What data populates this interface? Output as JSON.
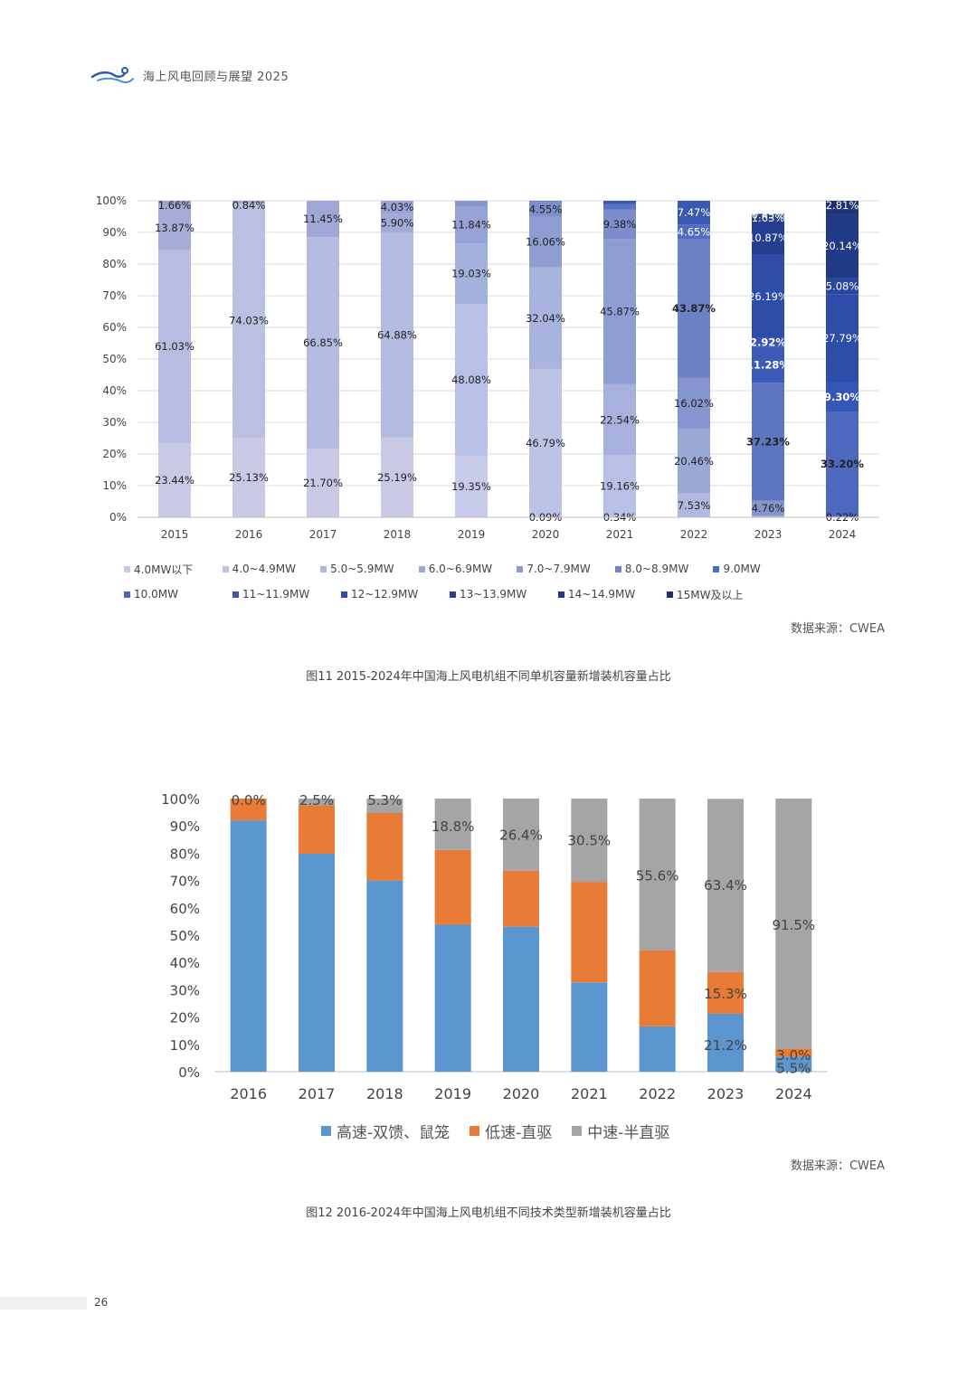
{
  "header": {
    "title": "海上风电回顾与展望 2025"
  },
  "figure11": {
    "caption": "图11  2015-2024年中国海上风电机组不同单机容量新增装机容量占比",
    "source": "数据来源：CWEA",
    "legend_rows": [
      [
        {
          "label": "4.0MW以下",
          "color": "#c9c9e6"
        },
        {
          "label": "4.0~4.9MW",
          "color": "#bec3e3"
        },
        {
          "label": "5.0~5.9MW",
          "color": "#aeb8e1"
        },
        {
          "label": "6.0~6.9MW",
          "color": "#9ea8d7"
        },
        {
          "label": "7.0~7.9MW",
          "color": "#8d9acf"
        },
        {
          "label": "8.0~8.9MW",
          "color": "#6f82c6"
        },
        {
          "label": "9.0MW",
          "color": "#4f6cc0"
        }
      ],
      [
        {
          "label": "10.0MW",
          "color": "#4a66bb"
        },
        {
          "label": "11~11.9MW",
          "color": "#3a58b2"
        },
        {
          "label": "12~12.9MW",
          "color": "#2f4ea8"
        },
        {
          "label": "13~13.9MW",
          "color": "#263f92"
        },
        {
          "label": "14~14.9MW",
          "color": "#223a85"
        },
        {
          "label": "15MW及以上",
          "color": "#1c2f6e"
        }
      ]
    ]
  },
  "figure12": {
    "caption": "图12  2016-2024年中国海上风电机组不同技术类型新增装机容量占比",
    "source": "数据来源：CWEA",
    "legend": [
      {
        "label": "高速-双馈、鼠笼",
        "color": "#5b96cf"
      },
      {
        "label": "低速-直驱",
        "color": "#e87b35"
      },
      {
        "label": "中速-半直驱",
        "color": "#a5a5a5"
      }
    ]
  },
  "page": {
    "number": "26"
  },
  "chart_data": [
    {
      "type": "bar",
      "stacked": true,
      "ylim": [
        0,
        100
      ],
      "yticks": [
        "0%",
        "10%",
        "20%",
        "30%",
        "40%",
        "50%",
        "60%",
        "70%",
        "80%",
        "90%",
        "100%"
      ],
      "grid": true,
      "legend_position": "bottom",
      "categories": [
        "2015",
        "2016",
        "2017",
        "2018",
        "2019",
        "2020",
        "2021",
        "2022",
        "2023",
        "2024"
      ],
      "series": [
        {
          "name": "4.0MW以下",
          "color": "#c9c9e6",
          "values": [
            1.66,
            0.84,
            0,
            0,
            0,
            0,
            0,
            0,
            0,
            0
          ]
        },
        {
          "name": "4.0~4.9MW",
          "color": "#bec3e3",
          "values": [
            13.87,
            0,
            0,
            4.03,
            0,
            0,
            0,
            0,
            0,
            0
          ]
        },
        {
          "name": "5.0~5.9MW",
          "color": "#aeb8e1",
          "values": [
            0,
            0,
            11.45,
            5.9,
            0,
            0,
            0,
            0,
            0,
            0
          ]
        },
        {
          "name": "6.0~6.9MW",
          "color": "#9ea8d7",
          "values": [
            0,
            0,
            0,
            0,
            1.7,
            0,
            0,
            0,
            0,
            0
          ]
        },
        {
          "name": "7.0~7.9MW",
          "color": "#8d9acf",
          "values": [
            61.03,
            74.03,
            66.85,
            64.88,
            11.84,
            4.55,
            1.1,
            0,
            0,
            0
          ]
        },
        {
          "name": "8.0~8.9MW",
          "color": "#6f82c6",
          "values": [
            0,
            0,
            0,
            0,
            19.03,
            16.06,
            9.38,
            7.47,
            0.45,
            2.81
          ]
        },
        {
          "name": "9.0MW",
          "color": "#4f6cc0",
          "values": [
            23.44,
            25.13,
            21.7,
            25.19,
            48.08,
            32.04,
            45.87,
            4.65,
            1.63,
            20.14
          ]
        },
        {
          "name": "10.0MW",
          "color": "#4a66bb",
          "values": [
            0,
            0,
            0,
            0,
            19.35,
            46.79,
            22.54,
            43.87,
            10.87,
            5.08
          ]
        },
        {
          "name": "11~11.9MW",
          "color": "#3a58b2",
          "values": [
            0,
            0,
            0,
            0,
            0,
            0.09,
            19.16,
            16.02,
            26.19,
            27.79
          ]
        },
        {
          "name": "12~12.9MW",
          "color": "#2f4ea8",
          "values": [
            0,
            0,
            0,
            0,
            0,
            0,
            0.34,
            20.46,
            2.92,
            9.3
          ]
        },
        {
          "name": "13~13.9MW",
          "color": "#263f92",
          "values": [
            0,
            0,
            0,
            0,
            0,
            0,
            0,
            7.53,
            11.28,
            33.2
          ]
        },
        {
          "name": "14~14.9MW",
          "color": "#223a85",
          "values": [
            0,
            0,
            0,
            0,
            0,
            0,
            0,
            0,
            37.23,
            1.46
          ]
        },
        {
          "name": "15MW及以上",
          "color": "#1c2f6e",
          "values": [
            0,
            0,
            0,
            0,
            0,
            0,
            0,
            0,
            4.76,
            0.22
          ]
        }
      ],
      "label_colors": {
        "dark": "#222222",
        "light": "#ffffff"
      },
      "bars": [
        {
          "segs": [
            {
              "v": 23.44,
              "c": "#c9c9e6",
              "label": "23.44%"
            },
            {
              "v": 61.03,
              "c": "#b7bce0",
              "label": "61.03%"
            },
            {
              "v": 13.87,
              "c": "#a6acd8",
              "label": "13.87%"
            },
            {
              "v": 1.66,
              "c": "#9aa1d2",
              "label": "1.66%"
            }
          ]
        },
        {
          "segs": [
            {
              "v": 25.13,
              "c": "#c9c9e6",
              "label": "25.13%"
            },
            {
              "v": 74.03,
              "c": "#b9c0e2",
              "label": "74.03%"
            },
            {
              "v": 0.84,
              "c": "#9fa8d6",
              "label": "0.84%"
            }
          ]
        },
        {
          "segs": [
            {
              "v": 21.7,
              "c": "#c9c9e6",
              "label": "21.70%"
            },
            {
              "v": 66.85,
              "c": "#b4bce1",
              "label": "66.85%"
            },
            {
              "v": 11.45,
              "c": "#9ea7d6",
              "label": "11.45%"
            }
          ]
        },
        {
          "segs": [
            {
              "v": 25.19,
              "c": "#c9c9e6",
              "label": "25.19%"
            },
            {
              "v": 64.88,
              "c": "#b3bbe0",
              "label": "64.88%"
            },
            {
              "v": 5.9,
              "c": "#a2aad8",
              "label": "5.90%"
            },
            {
              "v": 4.03,
              "c": "#9aa3d5",
              "label": "4.03%"
            }
          ]
        },
        {
          "segs": [
            {
              "v": 19.35,
              "c": "#c9cbea",
              "label": "19.35%"
            },
            {
              "v": 48.08,
              "c": "#b7c0e6",
              "label": "48.08%"
            },
            {
              "v": 19.03,
              "c": "#a5b1dd",
              "label": "19.03%"
            },
            {
              "v": 11.84,
              "c": "#97a3d6",
              "label": "11.84%"
            },
            {
              "v": 1.7,
              "c": "#8695cd",
              "label": ""
            }
          ]
        },
        {
          "segs": [
            {
              "v": 0.09,
              "c": "#c9cbea",
              "label": "0.09%"
            },
            {
              "v": 46.79,
              "c": "#bcc4e6",
              "label": "46.79%"
            },
            {
              "v": 32.04,
              "c": "#a8b3de",
              "label": "32.04%"
            },
            {
              "v": 16.06,
              "c": "#8f9dd2",
              "label": "16.06%"
            },
            {
              "v": 4.55,
              "c": "#7f8fcb",
              "label": "4.55%"
            },
            {
              "v": 0.47,
              "c": "#6f82c6",
              "label": ""
            }
          ]
        },
        {
          "segs": [
            {
              "v": 0.34,
              "c": "#c9cbea",
              "label": "0.34%"
            },
            {
              "v": 19.16,
              "c": "#b8c1e5",
              "label": "19.16%"
            },
            {
              "v": 22.54,
              "c": "#a6b1dd",
              "label": "22.54%"
            },
            {
              "v": 45.87,
              "c": "#8e9ed4",
              "label": "45.87%"
            },
            {
              "v": 9.38,
              "c": "#7b8dcb",
              "label": "9.38%"
            },
            {
              "v": 1.6,
              "c": "#5a73c3",
              "label": ""
            },
            {
              "v": 1.11,
              "c": "#3c5ab5",
              "label": ""
            }
          ]
        },
        {
          "segs": [
            {
              "v": 7.53,
              "c": "#b0bae0",
              "label": "7.53%"
            },
            {
              "v": 20.46,
              "c": "#9aa8d8",
              "label": "20.46%"
            },
            {
              "v": 16.02,
              "c": "#8596ce",
              "label": "16.02%"
            },
            {
              "v": 43.87,
              "c": "#6c82c6",
              "label": "43.87%"
            },
            {
              "v": 4.65,
              "c": "#4e6cc0",
              "label": "4.65%"
            },
            {
              "v": 7.47,
              "c": "#3a58b2",
              "label": "7.47%"
            }
          ]
        },
        {
          "segs": [
            {
              "v": 0.5,
              "c": "#9aa8d8",
              "label": ""
            },
            {
              "v": 4.76,
              "c": "#8596ce",
              "label": "4.76%"
            },
            {
              "v": 37.23,
              "c": "#5d76c2",
              "label": "37.23%"
            },
            {
              "v": 11.28,
              "c": "#3a5bb8",
              "label": "11.28%"
            },
            {
              "v": 2.92,
              "c": "#3456b4",
              "label": "2.92%"
            },
            {
              "v": 26.19,
              "c": "#2d4da8",
              "label": "26.19%"
            },
            {
              "v": 10.87,
              "c": "#253f90",
              "label": "10.87%"
            },
            {
              "v": 1.63,
              "c": "#223a85",
              "label": "1.63%"
            },
            {
              "v": 0.45,
              "c": "#1c2f6e",
              "label": "0.45%"
            }
          ]
        },
        {
          "segs": [
            {
              "v": 0.22,
              "c": "#8596ce",
              "label": "0.22%"
            },
            {
              "v": 33.2,
              "c": "#4d69bd",
              "label": "33.20%"
            },
            {
              "v": 9.3,
              "c": "#3456b4",
              "label": "9.30%"
            },
            {
              "v": 27.79,
              "c": "#2d4da8",
              "label": "27.79%"
            },
            {
              "v": 5.08,
              "c": "#2a47a0",
              "label": "5.08%"
            },
            {
              "v": 20.14,
              "c": "#203a85",
              "label": "20.14%"
            },
            {
              "v": 1.46,
              "c": "#1e3479",
              "label": ""
            },
            {
              "v": 2.81,
              "c": "#1c2f6e",
              "label": "2.81%"
            }
          ]
        }
      ]
    },
    {
      "type": "bar",
      "stacked": true,
      "ylim": [
        0,
        100
      ],
      "yticks": [
        "0%",
        "10%",
        "20%",
        "30%",
        "40%",
        "50%",
        "60%",
        "70%",
        "80%",
        "90%",
        "100%"
      ],
      "grid": false,
      "legend_position": "bottom",
      "categories": [
        "2016",
        "2017",
        "2018",
        "2019",
        "2020",
        "2021",
        "2022",
        "2023",
        "2024"
      ],
      "series": [
        {
          "name": "高速-双馈、鼠笼",
          "color": "#5b96cf",
          "values": [
            92.0,
            79.8,
            70.0,
            53.8,
            53.1,
            32.7,
            16.6,
            21.2,
            5.5
          ]
        },
        {
          "name": "低速-直驱",
          "color": "#e87b35",
          "values": [
            8.0,
            17.7,
            24.7,
            27.4,
            20.5,
            36.8,
            27.8,
            15.3,
            3.0
          ]
        },
        {
          "name": "中速-半直驱",
          "color": "#a5a5a5",
          "values": [
            0.0,
            2.5,
            5.3,
            18.8,
            26.4,
            30.5,
            55.6,
            63.4,
            91.5
          ]
        }
      ],
      "data_labels": [
        {
          "cat": "2016",
          "series": 2,
          "text": "0.0%"
        },
        {
          "cat": "2017",
          "series": 2,
          "text": "2.5%"
        },
        {
          "cat": "2018",
          "series": 2,
          "text": "5.3%"
        },
        {
          "cat": "2019",
          "series": 2,
          "text": "18.8%"
        },
        {
          "cat": "2020",
          "series": 2,
          "text": "26.4%"
        },
        {
          "cat": "2021",
          "series": 2,
          "text": "30.5%"
        },
        {
          "cat": "2022",
          "series": 2,
          "text": "55.6%"
        },
        {
          "cat": "2023",
          "series": 2,
          "text": "63.4%"
        },
        {
          "cat": "2023",
          "series": 1,
          "text": "15.3%"
        },
        {
          "cat": "2023",
          "series": 0,
          "text": "21.2%"
        },
        {
          "cat": "2024",
          "series": 2,
          "text": "91.5%"
        },
        {
          "cat": "2024",
          "series": 1,
          "text": "3.0%"
        },
        {
          "cat": "2024",
          "series": 0,
          "text": "5.5%"
        }
      ]
    }
  ]
}
